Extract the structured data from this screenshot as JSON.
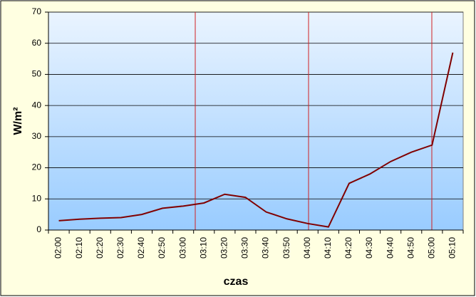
{
  "chart_data": {
    "type": "line",
    "x_label": "czas",
    "y_label": "W/m²",
    "categories": [
      "02:00",
      "02:10",
      "02:20",
      "02:30",
      "02:40",
      "02:50",
      "03:00",
      "03:10",
      "03:20",
      "03:30",
      "03:40",
      "03:50",
      "04:00",
      "04:10",
      "04:20",
      "04:30",
      "04:40",
      "04:50",
      "05:00",
      "05:10"
    ],
    "series": [
      {
        "name": "W/m²",
        "color": "#800000",
        "values": [
          3,
          3.5,
          3.8,
          4,
          5,
          7,
          7.7,
          8.7,
          11.5,
          10.5,
          5.8,
          3.6,
          2.1,
          1.0,
          15,
          18,
          22,
          25,
          27.3,
          57
        ]
      }
    ],
    "ylim": [
      0,
      70
    ],
    "yticks": [
      0,
      10,
      20,
      30,
      40,
      50,
      60,
      70
    ],
    "grid": true
  }
}
